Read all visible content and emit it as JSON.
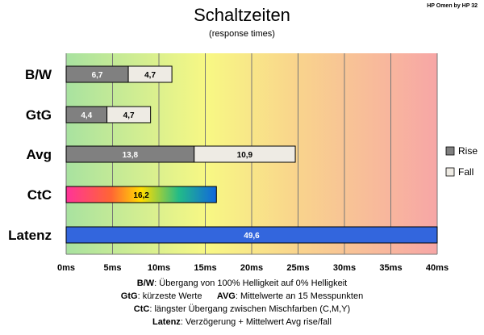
{
  "title": "Schaltzeiten",
  "subtitle": "(response times)",
  "corner_label": "HP Omen by HP 32",
  "colors": {
    "rise": "#808080",
    "fall": "#eeebe4",
    "latency": "#3366dd",
    "grid": "#777777"
  },
  "chart_data": {
    "type": "bar",
    "orientation": "horizontal",
    "stacked": true,
    "title": "Schaltzeiten",
    "subtitle": "(response times)",
    "categories": [
      "B/W",
      "GtG",
      "Avg",
      "CtC",
      "Latenz"
    ],
    "series": [
      {
        "name": "Rise",
        "values": [
          6.7,
          4.4,
          13.8,
          null,
          null
        ]
      },
      {
        "name": "Fall",
        "values": [
          4.7,
          4.7,
          10.9,
          null,
          null
        ]
      }
    ],
    "single_values": [
      {
        "category": "CtC",
        "value": 16.2,
        "label": "16,2",
        "fill": "rainbow"
      },
      {
        "category": "Latenz",
        "value": 49.6,
        "label": "49,6",
        "fill": "blue"
      }
    ],
    "value_labels": {
      "B/W": [
        "6,7",
        "4,7"
      ],
      "GtG": [
        "4,4",
        "4,7"
      ],
      "Avg": [
        "13,8",
        "10,9"
      ]
    },
    "xlim": [
      0,
      40
    ],
    "x_ticks": [
      "0ms",
      "5ms",
      "10ms",
      "15ms",
      "20ms",
      "25ms",
      "30ms",
      "35ms",
      "40ms"
    ],
    "background": "gradient green-yellow-red",
    "grid": true,
    "legend": {
      "position": "right",
      "items": [
        "Rise",
        "Fall"
      ]
    }
  },
  "notes": [
    {
      "key": "B/W",
      "text": ":  Übergang von 100% Helligkeit auf 0% Helligkeit"
    },
    {
      "key": "GtG",
      "text": ": kürzeste  Werte",
      "key2": "AVG",
      "text2": ": Mittelwerte  an 15 Messpunkten"
    },
    {
      "key": "CtC",
      "text": ": längster Übergang  zwischen Mischfarben  (C,M,Y)"
    },
    {
      "key": "Latenz",
      "text": ": Verzögerung  + Mittelwert  Avg rise/fall"
    }
  ]
}
